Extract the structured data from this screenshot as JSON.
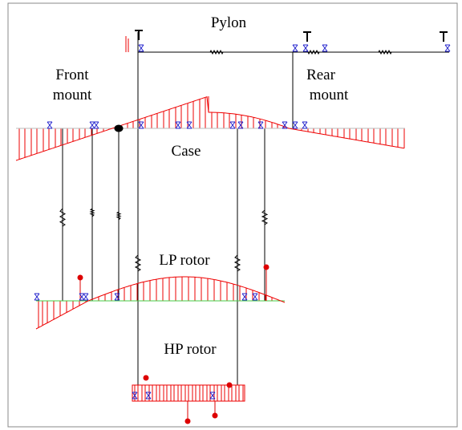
{
  "labels": {
    "pylon": "Pylon",
    "front_mount": [
      "Front",
      "mount"
    ],
    "rear_mount": [
      "Rear",
      "mount"
    ],
    "case": "Case",
    "lp_rotor": "LP rotor",
    "hp_rotor": "HP rotor"
  }
}
